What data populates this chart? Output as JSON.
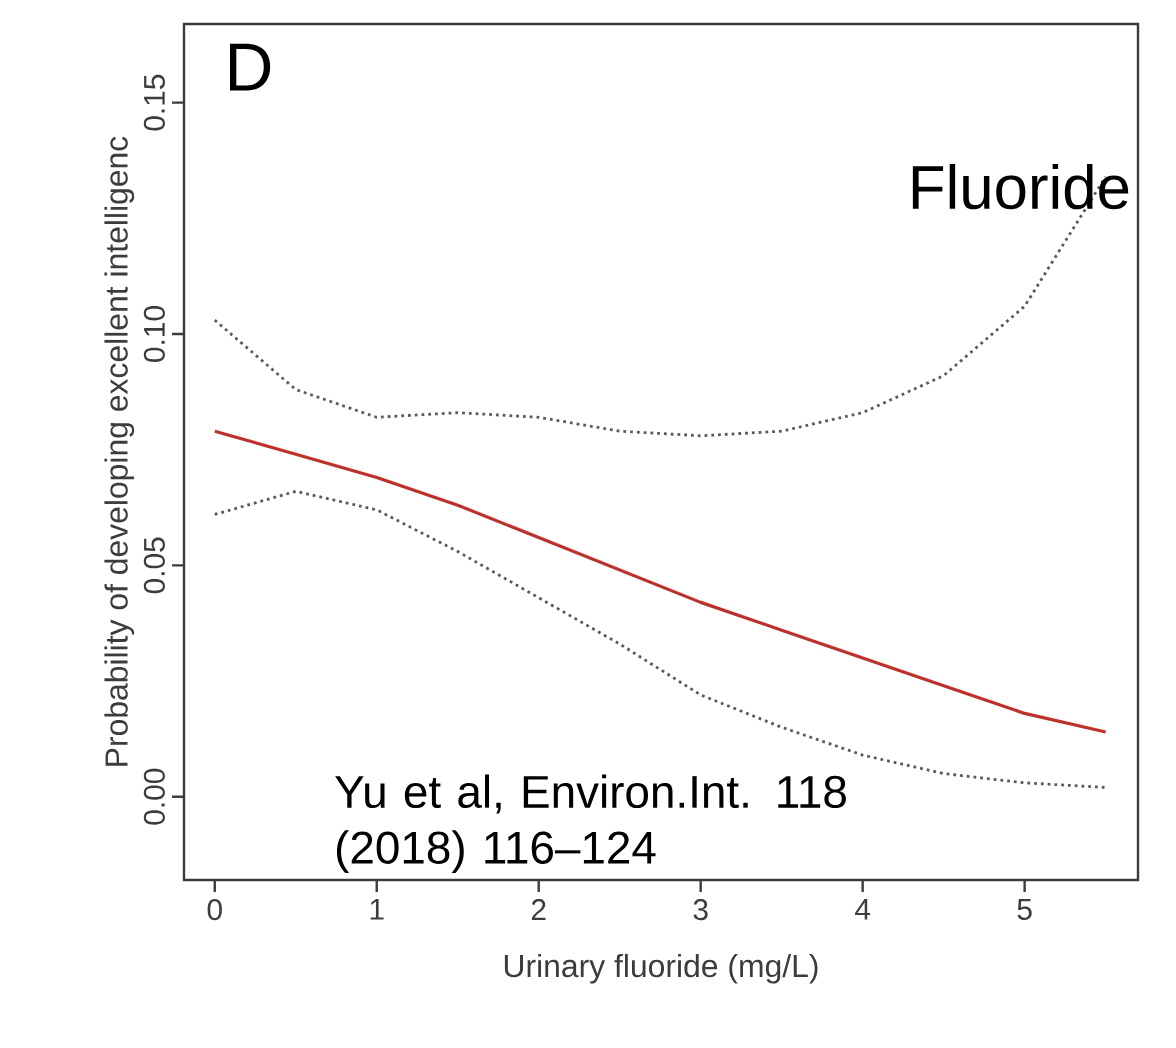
{
  "chart_data": {
    "type": "line",
    "xlabel": "Urinary fluoride (mg/L)",
    "ylabel": "Probability of developing excellent intelligenc",
    "annotations": [
      "D",
      "Fluoride",
      "Yu et al, Environ.Int. 118 (2018) 116–124"
    ],
    "x": [
      0,
      0.5,
      1,
      1.5,
      2,
      2.5,
      3,
      3.5,
      4,
      4.5,
      5,
      5.5
    ],
    "series": [
      {
        "color": "#5a5a5a",
        "line_style": "dotted",
        "values": [
          0.103,
          0.088,
          0.082,
          0.083,
          0.082,
          0.079,
          0.078,
          0.079,
          0.083,
          0.091,
          0.106,
          0.134
        ]
      },
      {
        "color": "#5a5a5a",
        "line_style": "dotted",
        "values": [
          0.061,
          0.066,
          0.062,
          0.053,
          0.043,
          0.033,
          0.022,
          0.015,
          0.009,
          0.005,
          0.003,
          0.002
        ]
      },
      {
        "color": "#c0302a",
        "values": [
          0.079,
          0.074,
          0.069,
          0.063,
          0.056,
          0.049,
          0.042,
          0.036,
          0.03,
          0.024,
          0.018,
          0.014
        ]
      }
    ],
    "xlim": [
      -0.19,
      5.7
    ],
    "ylim": [
      -0.018,
      0.167
    ],
    "xticks": [
      0,
      1,
      2,
      3,
      4,
      5
    ],
    "yticks": [
      {
        "value": 0,
        "label": "0.00"
      },
      {
        "value": 0.05,
        "label": "0.05"
      },
      {
        "value": 0.1,
        "label": "0.10"
      },
      {
        "value": 0.15,
        "label": "0.15"
      }
    ],
    "grid": false,
    "marker": "none",
    "line_style": "solid"
  }
}
